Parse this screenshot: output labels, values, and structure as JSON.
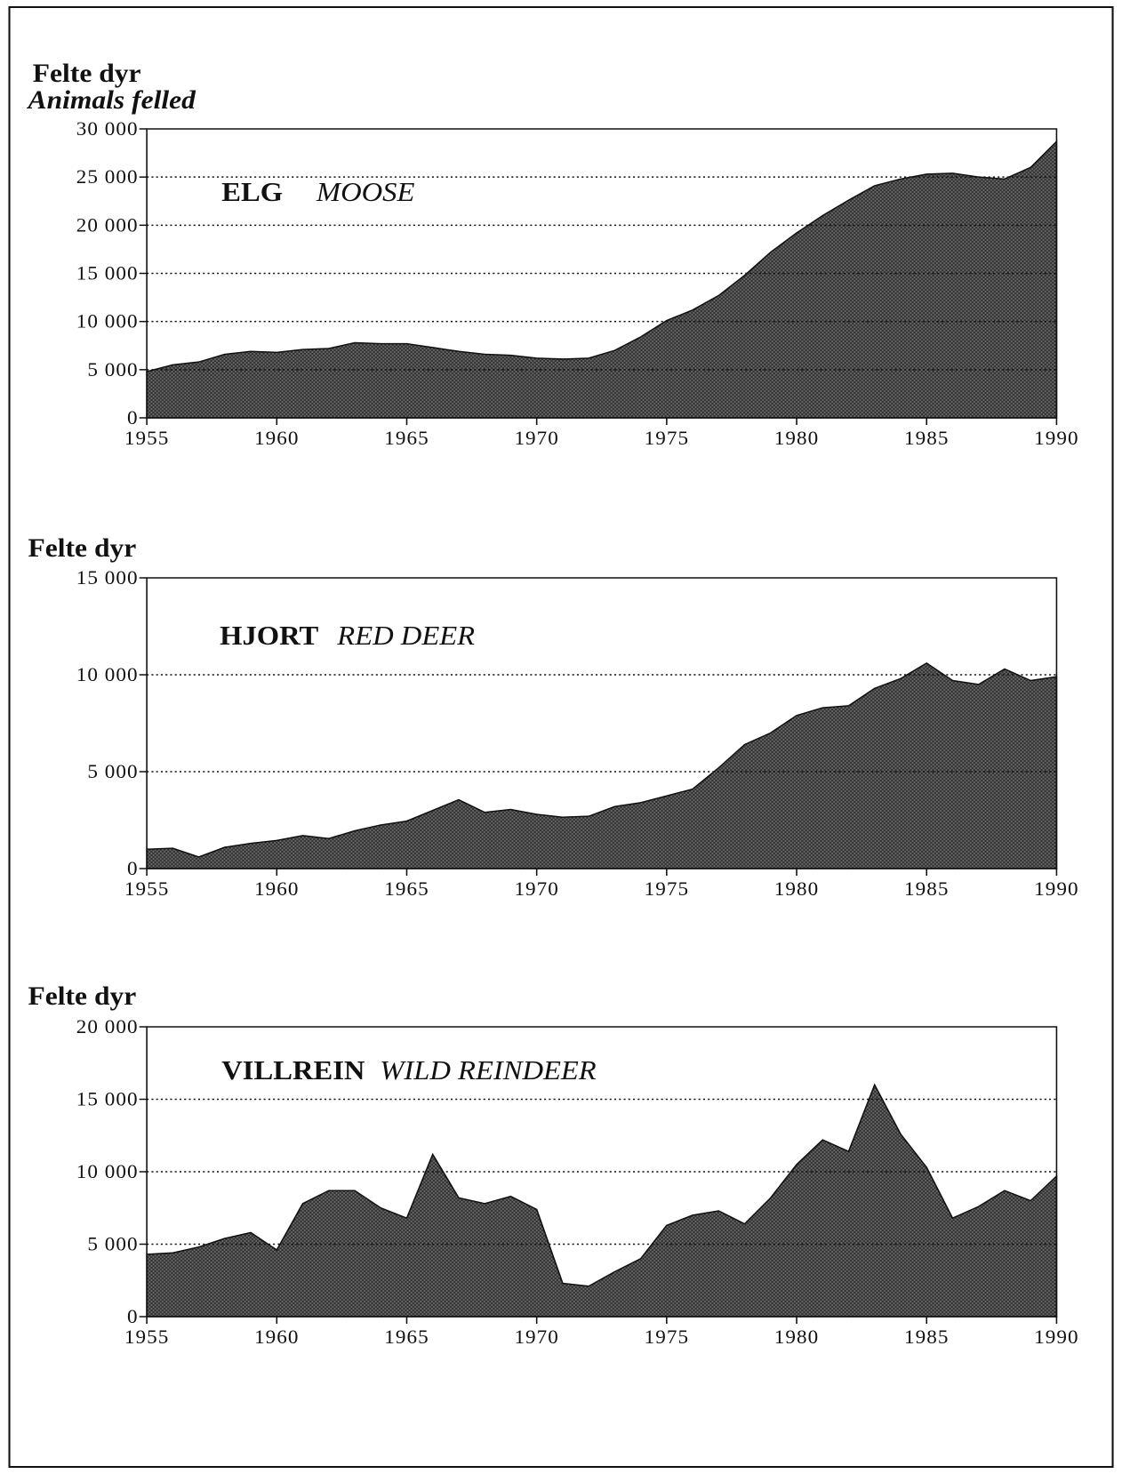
{
  "chart_data": [
    {
      "type": "area",
      "ylabel": "Felte dyr",
      "ylabel_en": "Animals felled",
      "label": "ELG",
      "label_en": "MOOSE",
      "color": "#6a6a6a",
      "x": [
        1955,
        1956,
        1957,
        1958,
        1959,
        1960,
        1961,
        1962,
        1963,
        1964,
        1965,
        1966,
        1967,
        1968,
        1969,
        1970,
        1971,
        1972,
        1973,
        1974,
        1975,
        1976,
        1977,
        1978,
        1979,
        1980,
        1981,
        1982,
        1983,
        1984,
        1985,
        1986,
        1987,
        1988,
        1989,
        1990
      ],
      "values": [
        4800,
        5500,
        5800,
        6600,
        6900,
        6800,
        7100,
        7200,
        7800,
        7700,
        7700,
        7300,
        6900,
        6600,
        6500,
        6200,
        6100,
        6200,
        7000,
        8400,
        10100,
        11200,
        12700,
        14800,
        17200,
        19200,
        21000,
        22600,
        24100,
        24800,
        25300,
        25400,
        25000,
        24800,
        26000,
        28700
      ],
      "xlim": [
        1955,
        1990
      ],
      "xticks": [
        1955,
        1960,
        1965,
        1970,
        1975,
        1980,
        1985,
        1990
      ],
      "ylim": [
        0,
        30000
      ],
      "yticks": [
        0,
        {
          "value": 5000,
          "label": "5 000"
        },
        {
          "value": 10000,
          "label": "10 000"
        },
        {
          "value": 15000,
          "label": "15 000"
        },
        {
          "value": 20000,
          "label": "20 000"
        },
        {
          "value": 25000,
          "label": "25 000"
        },
        {
          "value": 30000,
          "label": "30 000"
        }
      ],
      "grid": true
    },
    {
      "type": "area",
      "ylabel": "Felte dyr",
      "label": "HJORT",
      "label_en": "RED DEER",
      "color": "#6a6a6a",
      "x": [
        1955,
        1956,
        1957,
        1958,
        1959,
        1960,
        1961,
        1962,
        1963,
        1964,
        1965,
        1966,
        1967,
        1968,
        1969,
        1970,
        1971,
        1972,
        1973,
        1974,
        1975,
        1976,
        1977,
        1978,
        1979,
        1980,
        1981,
        1982,
        1983,
        1984,
        1985,
        1986,
        1987,
        1988,
        1989,
        1990
      ],
      "values": [
        1000,
        1050,
        600,
        1100,
        1300,
        1450,
        1700,
        1550,
        1950,
        2250,
        2450,
        3000,
        3550,
        2900,
        3050,
        2800,
        2650,
        2700,
        3200,
        3400,
        3750,
        4100,
        5200,
        6400,
        7000,
        7900,
        8300,
        8400,
        9300,
        9800,
        10600,
        9700,
        9500,
        10300,
        9700,
        9900
      ],
      "xlim": [
        1955,
        1990
      ],
      "xticks": [
        1955,
        1960,
        1965,
        1970,
        1975,
        1980,
        1985,
        1990
      ],
      "ylim": [
        0,
        15000
      ],
      "yticks": [
        0,
        {
          "value": 5000,
          "label": "5 000"
        },
        {
          "value": 10000,
          "label": "10 000"
        },
        {
          "value": 15000,
          "label": "15 000"
        }
      ],
      "grid": true
    },
    {
      "type": "area",
      "ylabel": "Felte dyr",
      "label": "VILLREIN",
      "label_en": "WILD REINDEER",
      "color": "#6a6a6a",
      "x": [
        1955,
        1956,
        1957,
        1958,
        1959,
        1960,
        1961,
        1962,
        1963,
        1964,
        1965,
        1966,
        1967,
        1968,
        1969,
        1970,
        1971,
        1972,
        1973,
        1974,
        1975,
        1976,
        1977,
        1978,
        1979,
        1980,
        1981,
        1982,
        1983,
        1984,
        1985,
        1986,
        1987,
        1988,
        1989,
        1990
      ],
      "values": [
        4300,
        4400,
        4800,
        5400,
        5800,
        4600,
        7800,
        8700,
        8700,
        7500,
        6800,
        11200,
        8200,
        7800,
        8300,
        7400,
        2300,
        2100,
        3100,
        4000,
        6300,
        7000,
        7300,
        6400,
        8200,
        10500,
        12200,
        11400,
        16000,
        12600,
        10300,
        6800,
        7600,
        8700,
        8000,
        9700
      ],
      "xlim": [
        1955,
        1990
      ],
      "xticks": [
        1955,
        1960,
        1965,
        1970,
        1975,
        1980,
        1985,
        1990
      ],
      "ylim": [
        0,
        20000
      ],
      "yticks": [
        0,
        {
          "value": 5000,
          "label": "5 000"
        },
        {
          "value": 10000,
          "label": "10 000"
        },
        {
          "value": 15000,
          "label": "15 000"
        },
        {
          "value": 20000,
          "label": "20 000"
        }
      ],
      "grid": true
    }
  ]
}
